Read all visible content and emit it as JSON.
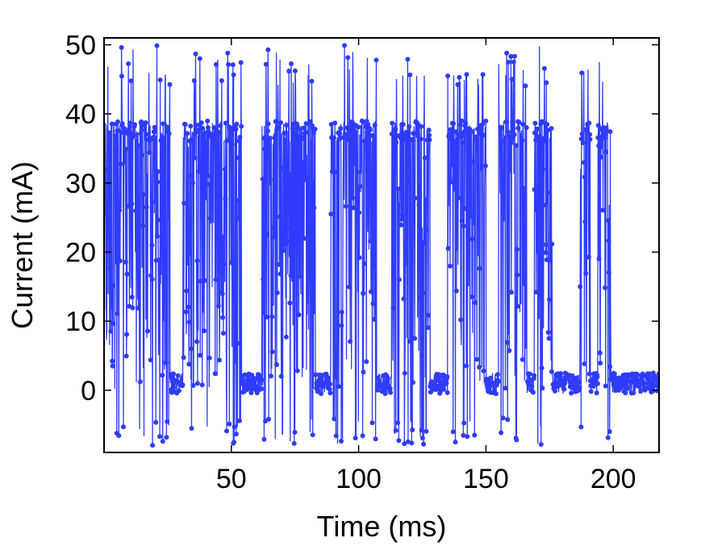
{
  "chart_data": {
    "type": "line",
    "xlabel": "Time (ms)",
    "ylabel": "Current (mA)",
    "xlim": [
      0,
      218
    ],
    "ylim": [
      -9,
      51
    ],
    "xticks": [
      50,
      100,
      150,
      200
    ],
    "yticks": [
      0,
      10,
      20,
      30,
      40,
      50
    ],
    "grid": false,
    "series_color": "#2f3cff",
    "marker": "filled-circle",
    "baseline_level_mA": 1.0,
    "baseline_noise_mA": 1.5,
    "spike_min_mA": -8,
    "spike_max_mA": 50,
    "burst_windows_ms": [
      [
        0,
        26
      ],
      [
        31,
        54
      ],
      [
        62,
        83
      ],
      [
        89,
        107
      ],
      [
        113,
        128
      ],
      [
        135,
        150
      ],
      [
        155,
        166
      ],
      [
        169,
        176
      ],
      [
        187,
        191
      ],
      [
        194,
        199
      ]
    ],
    "burst_peak_mA": [
      50,
      50,
      50,
      50,
      50,
      46,
      49,
      50,
      47,
      49
    ]
  }
}
